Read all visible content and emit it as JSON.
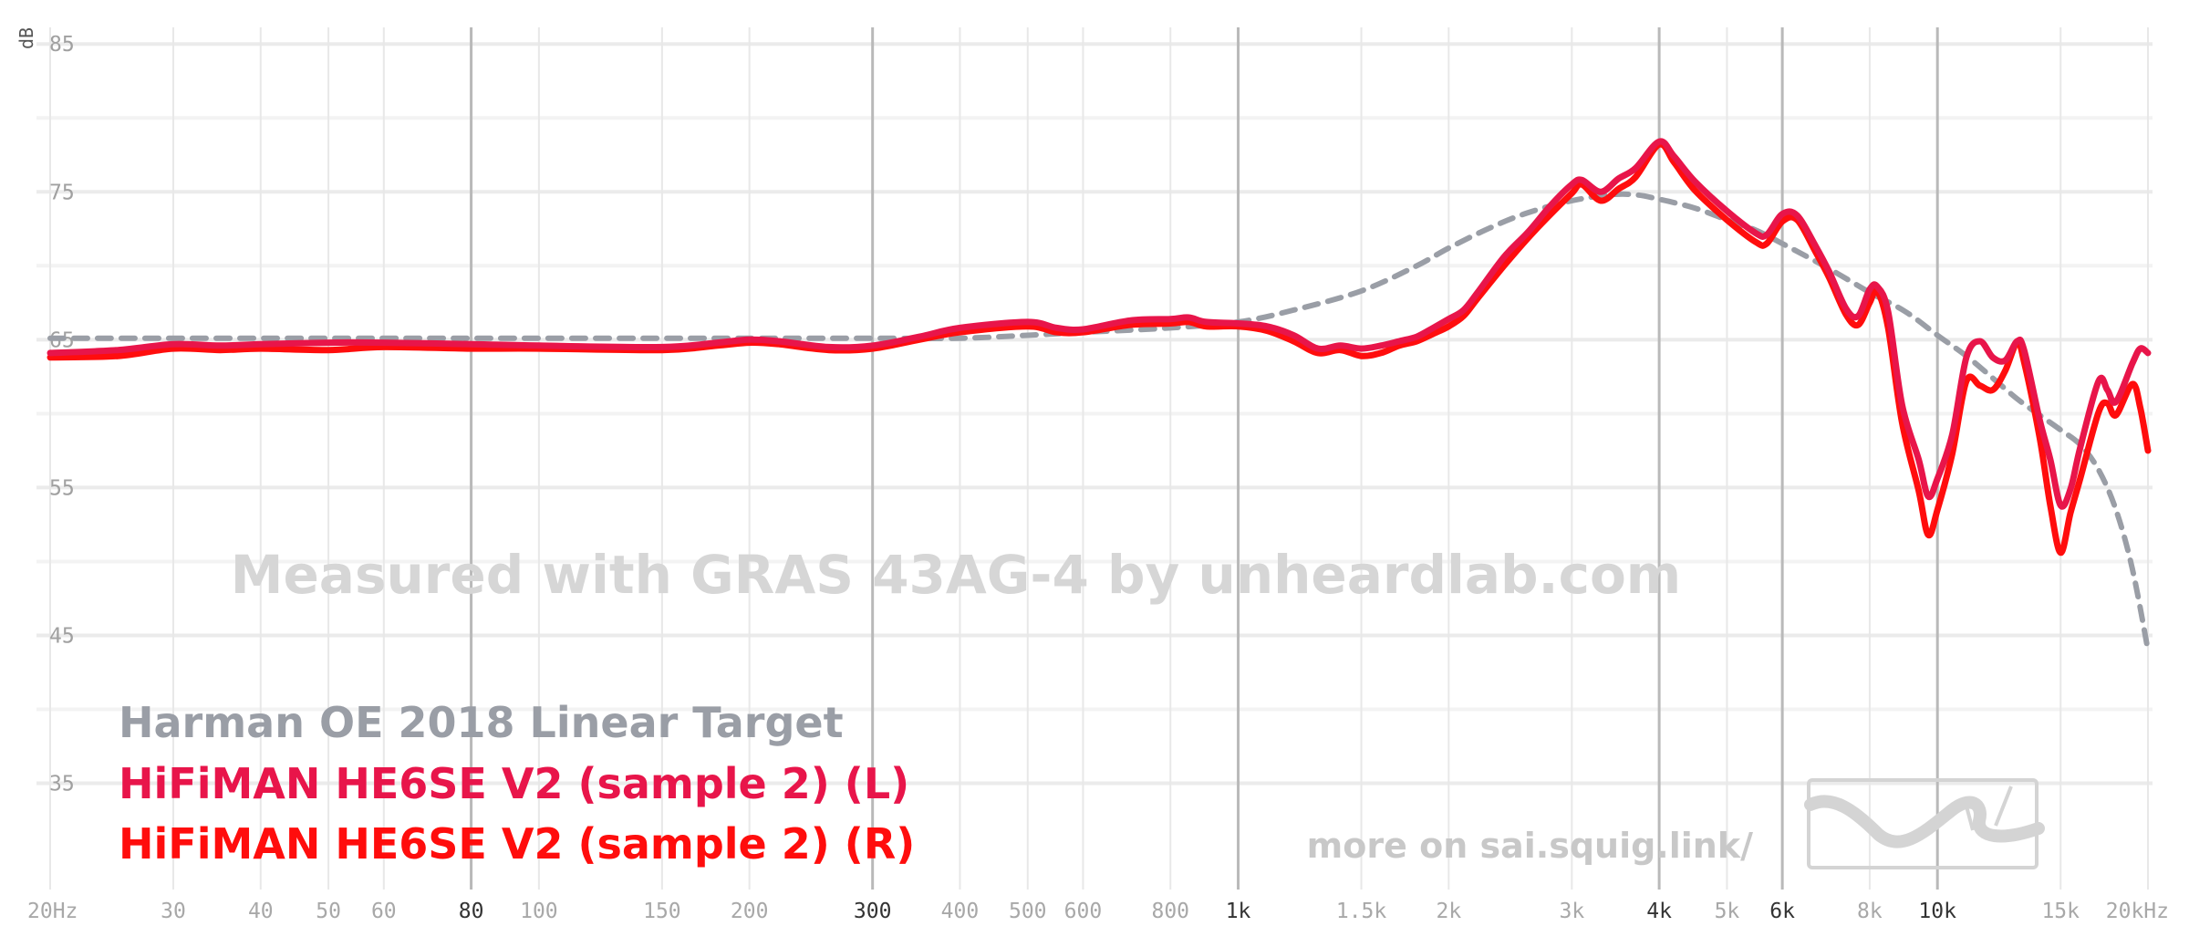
{
  "chart_data": {
    "type": "line",
    "title": "",
    "xlabel": "",
    "ylabel": "dB",
    "x_scale": "log",
    "xlim": [
      20,
      20000
    ],
    "ylim": [
      28,
      86
    ],
    "grid": true,
    "legend_position": "bottom-left",
    "watermark": "Measured with GRAS 43AG-4 by unheardlab.com",
    "site_link": "more on sai.squig.link/",
    "y_ticks": [
      {
        "v": 85,
        "label": "85"
      },
      {
        "v": 75,
        "label": "75"
      },
      {
        "v": 65,
        "label": "65"
      },
      {
        "v": 55,
        "label": "55"
      },
      {
        "v": 45,
        "label": "45"
      },
      {
        "v": 35,
        "label": "35"
      }
    ],
    "x_ticks": [
      {
        "v": 20,
        "label": "20Hz",
        "major": false
      },
      {
        "v": 30,
        "label": "30",
        "major": false
      },
      {
        "v": 40,
        "label": "40",
        "major": false
      },
      {
        "v": 50,
        "label": "50",
        "major": false
      },
      {
        "v": 60,
        "label": "60",
        "major": false
      },
      {
        "v": 80,
        "label": "80",
        "major": true
      },
      {
        "v": 100,
        "label": "100",
        "major": false
      },
      {
        "v": 150,
        "label": "150",
        "major": false
      },
      {
        "v": 200,
        "label": "200",
        "major": false
      },
      {
        "v": 300,
        "label": "300",
        "major": true
      },
      {
        "v": 400,
        "label": "400",
        "major": false
      },
      {
        "v": 500,
        "label": "500",
        "major": false
      },
      {
        "v": 600,
        "label": "600",
        "major": false
      },
      {
        "v": 800,
        "label": "800",
        "major": false
      },
      {
        "v": 1000,
        "label": "1k",
        "major": true
      },
      {
        "v": 1500,
        "label": "1.5k",
        "major": false
      },
      {
        "v": 2000,
        "label": "2k",
        "major": false
      },
      {
        "v": 3000,
        "label": "3k",
        "major": false
      },
      {
        "v": 4000,
        "label": "4k",
        "major": true
      },
      {
        "v": 5000,
        "label": "5k",
        "major": false
      },
      {
        "v": 6000,
        "label": "6k",
        "major": true
      },
      {
        "v": 8000,
        "label": "8k",
        "major": false
      },
      {
        "v": 10000,
        "label": "10k",
        "major": true
      },
      {
        "v": 15000,
        "label": "15k",
        "major": false
      },
      {
        "v": 20000,
        "label": "20kHz",
        "major": false
      }
    ],
    "series": [
      {
        "name": "Harman OE 2018 Linear Target",
        "color": "#9a9ea6",
        "style": "dashed",
        "points": [
          [
            20,
            65.1
          ],
          [
            50,
            65.1
          ],
          [
            100,
            65.1
          ],
          [
            200,
            65.1
          ],
          [
            300,
            65.1
          ],
          [
            400,
            65.1
          ],
          [
            500,
            65.3
          ],
          [
            600,
            65.5
          ],
          [
            800,
            65.8
          ],
          [
            1000,
            66.2
          ],
          [
            1200,
            67.0
          ],
          [
            1500,
            68.3
          ],
          [
            1800,
            70.0
          ],
          [
            2000,
            71.2
          ],
          [
            2300,
            72.6
          ],
          [
            2600,
            73.6
          ],
          [
            3000,
            74.4
          ],
          [
            3400,
            74.8
          ],
          [
            3700,
            74.8
          ],
          [
            4000,
            74.5
          ],
          [
            4500,
            73.9
          ],
          [
            5000,
            73.1
          ],
          [
            5500,
            72.4
          ],
          [
            6000,
            71.5
          ],
          [
            7000,
            69.8
          ],
          [
            8000,
            68.2
          ],
          [
            9000,
            66.9
          ],
          [
            10000,
            65.3
          ],
          [
            11000,
            63.9
          ],
          [
            12000,
            62.4
          ],
          [
            13000,
            61.0
          ],
          [
            14000,
            59.9
          ],
          [
            15000,
            58.9
          ],
          [
            16000,
            57.9
          ],
          [
            17000,
            56.2
          ],
          [
            18000,
            53.5
          ],
          [
            19000,
            49.5
          ],
          [
            20000,
            44.0
          ]
        ]
      },
      {
        "name": "HiFiMAN HE6SE V2 (sample 2) (L)",
        "color": "#e8154a",
        "style": "solid",
        "points": [
          [
            20,
            64.1
          ],
          [
            25,
            64.3
          ],
          [
            30,
            64.7
          ],
          [
            35,
            64.6
          ],
          [
            40,
            64.7
          ],
          [
            50,
            64.8
          ],
          [
            60,
            64.8
          ],
          [
            80,
            64.7
          ],
          [
            100,
            64.6
          ],
          [
            150,
            64.5
          ],
          [
            180,
            64.8
          ],
          [
            200,
            65.0
          ],
          [
            220,
            64.9
          ],
          [
            260,
            64.5
          ],
          [
            300,
            64.6
          ],
          [
            350,
            65.2
          ],
          [
            400,
            65.8
          ],
          [
            500,
            66.2
          ],
          [
            550,
            65.8
          ],
          [
            600,
            65.7
          ],
          [
            700,
            66.3
          ],
          [
            800,
            66.4
          ],
          [
            850,
            66.5
          ],
          [
            900,
            66.2
          ],
          [
            1000,
            66.1
          ],
          [
            1100,
            65.9
          ],
          [
            1200,
            65.3
          ],
          [
            1300,
            64.4
          ],
          [
            1400,
            64.6
          ],
          [
            1500,
            64.4
          ],
          [
            1600,
            64.6
          ],
          [
            1700,
            64.9
          ],
          [
            1800,
            65.2
          ],
          [
            1900,
            65.8
          ],
          [
            2000,
            66.4
          ],
          [
            2100,
            67.0
          ],
          [
            2200,
            68.2
          ],
          [
            2400,
            70.6
          ],
          [
            2600,
            72.3
          ],
          [
            2800,
            74.1
          ],
          [
            3000,
            75.5
          ],
          [
            3100,
            75.8
          ],
          [
            3300,
            75.0
          ],
          [
            3500,
            75.9
          ],
          [
            3700,
            76.6
          ],
          [
            4000,
            78.4
          ],
          [
            4200,
            77.4
          ],
          [
            4500,
            75.7
          ],
          [
            5000,
            73.7
          ],
          [
            5500,
            72.2
          ],
          [
            5700,
            72.1
          ],
          [
            6000,
            73.5
          ],
          [
            6300,
            73.4
          ],
          [
            6700,
            71.3
          ],
          [
            7000,
            69.6
          ],
          [
            7400,
            67.1
          ],
          [
            7700,
            66.6
          ],
          [
            8000,
            68.4
          ],
          [
            8200,
            68.6
          ],
          [
            8500,
            66.9
          ],
          [
            8900,
            60.6
          ],
          [
            9400,
            56.9
          ],
          [
            9700,
            54.4
          ],
          [
            10000,
            55.6
          ],
          [
            10500,
            58.6
          ],
          [
            11000,
            63.8
          ],
          [
            11500,
            64.9
          ],
          [
            12000,
            63.8
          ],
          [
            12500,
            63.6
          ],
          [
            13000,
            64.9
          ],
          [
            13300,
            64.3
          ],
          [
            14000,
            59.6
          ],
          [
            14500,
            56.9
          ],
          [
            15000,
            53.8
          ],
          [
            15500,
            54.9
          ],
          [
            16000,
            57.7
          ],
          [
            17000,
            62.2
          ],
          [
            17500,
            61.6
          ],
          [
            18000,
            60.8
          ],
          [
            19000,
            63.4
          ],
          [
            19500,
            64.4
          ],
          [
            20000,
            64.1
          ]
        ]
      },
      {
        "name": "HiFiMAN HE6SE V2 (sample 2) (R)",
        "color": "#ff0d0d",
        "style": "solid",
        "points": [
          [
            20,
            63.8
          ],
          [
            25,
            63.9
          ],
          [
            30,
            64.4
          ],
          [
            35,
            64.3
          ],
          [
            40,
            64.4
          ],
          [
            50,
            64.3
          ],
          [
            60,
            64.5
          ],
          [
            80,
            64.4
          ],
          [
            100,
            64.4
          ],
          [
            150,
            64.3
          ],
          [
            180,
            64.6
          ],
          [
            200,
            64.8
          ],
          [
            220,
            64.7
          ],
          [
            260,
            64.3
          ],
          [
            300,
            64.4
          ],
          [
            350,
            65.0
          ],
          [
            400,
            65.5
          ],
          [
            500,
            65.9
          ],
          [
            550,
            65.5
          ],
          [
            600,
            65.5
          ],
          [
            700,
            66.0
          ],
          [
            800,
            66.1
          ],
          [
            850,
            66.2
          ],
          [
            900,
            65.9
          ],
          [
            1000,
            65.9
          ],
          [
            1100,
            65.6
          ],
          [
            1200,
            64.9
          ],
          [
            1300,
            64.1
          ],
          [
            1400,
            64.3
          ],
          [
            1500,
            63.9
          ],
          [
            1600,
            64.1
          ],
          [
            1700,
            64.6
          ],
          [
            1800,
            64.9
          ],
          [
            1900,
            65.4
          ],
          [
            2000,
            65.9
          ],
          [
            2100,
            66.6
          ],
          [
            2200,
            67.8
          ],
          [
            2400,
            70.0
          ],
          [
            2600,
            71.9
          ],
          [
            2800,
            73.5
          ],
          [
            3000,
            74.9
          ],
          [
            3100,
            75.5
          ],
          [
            3300,
            74.4
          ],
          [
            3500,
            75.2
          ],
          [
            3700,
            76.0
          ],
          [
            4000,
            78.2
          ],
          [
            4200,
            77.0
          ],
          [
            4500,
            75.1
          ],
          [
            5000,
            73.1
          ],
          [
            5500,
            71.6
          ],
          [
            5700,
            71.5
          ],
          [
            6000,
            73.0
          ],
          [
            6300,
            73.1
          ],
          [
            6700,
            70.9
          ],
          [
            7000,
            69.2
          ],
          [
            7400,
            66.7
          ],
          [
            7700,
            66.0
          ],
          [
            8000,
            67.5
          ],
          [
            8200,
            68.3
          ],
          [
            8500,
            65.8
          ],
          [
            8900,
            59.4
          ],
          [
            9400,
            54.8
          ],
          [
            9700,
            51.8
          ],
          [
            10000,
            53.5
          ],
          [
            10500,
            57.3
          ],
          [
            11000,
            62.2
          ],
          [
            11500,
            61.9
          ],
          [
            12000,
            61.6
          ],
          [
            12500,
            62.9
          ],
          [
            13000,
            64.8
          ],
          [
            13300,
            63.5
          ],
          [
            14000,
            58.4
          ],
          [
            14500,
            53.8
          ],
          [
            15000,
            50.6
          ],
          [
            15500,
            53.3
          ],
          [
            16000,
            55.6
          ],
          [
            17000,
            60.1
          ],
          [
            17500,
            60.7
          ],
          [
            18000,
            59.9
          ],
          [
            19000,
            62.0
          ],
          [
            19500,
            60.4
          ],
          [
            20000,
            57.5
          ]
        ]
      }
    ]
  }
}
